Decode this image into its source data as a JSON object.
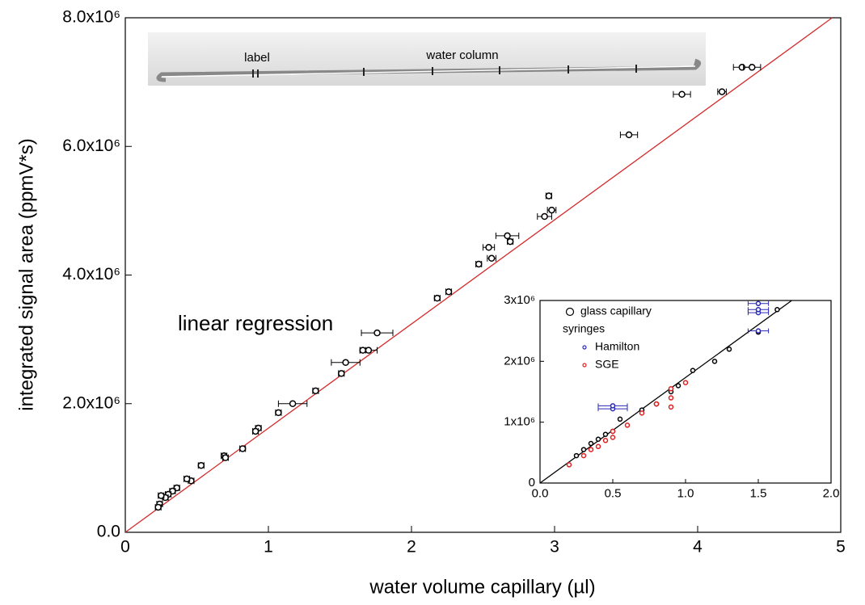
{
  "photo": {
    "labels": [
      "label",
      "water column"
    ]
  },
  "chart_data": [
    {
      "type": "scatter",
      "x_label": "water volume capillary (µl)",
      "y_label": "integrated signal area (ppmV*s)",
      "annotations": [
        {
          "text": "linear regression",
          "color": "#d42a2a"
        }
      ],
      "xlim": [
        0,
        5
      ],
      "ylim": [
        0,
        8000000
      ],
      "xticks": [
        0,
        1,
        2,
        3,
        4,
        5
      ],
      "yticks": [
        {
          "value": 0,
          "label": "0.0"
        },
        {
          "value": 2000000,
          "label": "2.0x10⁶"
        },
        {
          "value": 4000000,
          "label": "4.0x10⁶"
        },
        {
          "value": 6000000,
          "label": "6.0x10⁶"
        },
        {
          "value": 8000000,
          "label": "8.0x10⁶"
        }
      ],
      "series": [
        {
          "color": "#000000",
          "x": [
            4.31,
            4.38,
            3.89,
            4.17,
            3.52,
            2.96,
            2.98,
            2.93,
            2.67,
            2.69,
            2.54,
            2.56,
            2.47,
            2.26,
            2.18,
            1.76,
            1.7,
            1.66,
            1.54,
            1.51,
            1.33,
            1.17,
            1.07,
            0.93,
            0.91,
            0.82,
            0.69,
            0.7,
            0.53,
            0.46,
            0.43,
            0.36,
            0.33,
            0.3,
            0.28,
            0.25,
            0.24,
            0.23
          ],
          "values": [
            7230000,
            7230000,
            6810000,
            6850000,
            6180000,
            5230000,
            5010000,
            4910000,
            4610000,
            4520000,
            4430000,
            4260000,
            4170000,
            3740000,
            3640000,
            3100000,
            2830000,
            2830000,
            2640000,
            2470000,
            2200000,
            2000000,
            1860000,
            1620000,
            1570000,
            1300000,
            1190000,
            1160000,
            1040000,
            800000,
            830000,
            690000,
            640000,
            590000,
            540000,
            570000,
            440000,
            390000
          ],
          "x_errors": [
            0.06,
            0.06,
            0.06,
            0.03,
            0.06,
            0.02,
            0.03,
            0.05,
            0.08,
            0.02,
            0.04,
            0.03,
            0.02,
            0.02,
            0.02,
            0.11,
            0.06,
            0.02,
            0.1,
            0.02,
            0.02,
            0.1,
            0.02,
            0.02,
            0.02,
            0.02,
            0.02,
            0.02,
            0.02,
            0.02,
            0.02,
            0.02,
            0.02,
            0.02,
            0.02,
            0.02,
            0.02,
            0.02
          ]
        }
      ],
      "regression": {
        "x": [
          0,
          4.94
        ],
        "values": [
          0,
          8000000
        ],
        "color": "#d42a2a"
      }
    },
    {
      "type": "scatter",
      "xlim": [
        0,
        2
      ],
      "ylim": [
        0,
        3000000
      ],
      "xticks": [
        {
          "value": 0,
          "label": "0.0"
        },
        {
          "value": 0.5,
          "label": "0.5"
        },
        {
          "value": 1,
          "label": "1.0"
        },
        {
          "value": 1.5,
          "label": "1.5"
        },
        {
          "value": 2,
          "label": "2.0"
        }
      ],
      "yticks": [
        0,
        {
          "value": 1000000,
          "label": "1x10⁶"
        },
        {
          "value": 2000000,
          "label": "2x10⁶"
        },
        {
          "value": 3000000,
          "label": "3x10⁶"
        }
      ],
      "legend_group_title": "syringes",
      "series": [
        {
          "name": "glass capillary",
          "color": "#000000",
          "x": [
            0.25,
            0.3,
            0.35,
            0.4,
            0.45,
            0.5,
            0.55,
            0.7,
            0.8,
            0.9,
            0.95,
            1.05,
            1.2,
            1.3,
            1.5,
            1.63
          ],
          "values": [
            450000,
            550000,
            650000,
            720000,
            800000,
            850000,
            1050000,
            1200000,
            1300000,
            1500000,
            1600000,
            1850000,
            2000000,
            2200000,
            2480000,
            2850000
          ]
        },
        {
          "name": "Hamilton",
          "color": "#2a2ab8",
          "x": [
            0.5,
            0.5,
            1.5,
            1.5,
            1.5,
            1.5
          ],
          "values": [
            1220000,
            1270000,
            2800000,
            2850000,
            2950000,
            2500000
          ],
          "x_errors": [
            0.1,
            0.1,
            0.07,
            0.07,
            0.07,
            0.07
          ]
        },
        {
          "name": "SGE",
          "color": "#e02020",
          "x": [
            0.2,
            0.3,
            0.35,
            0.4,
            0.45,
            0.5,
            0.5,
            0.6,
            0.7,
            0.8,
            0.9,
            0.9,
            0.9,
            1.0
          ],
          "values": [
            300000,
            450000,
            550000,
            600000,
            700000,
            750000,
            850000,
            950000,
            1150000,
            1300000,
            1250000,
            1400000,
            1550000,
            1650000
          ]
        }
      ],
      "regression": {
        "x": [
          0,
          1.73
        ],
        "values": [
          0,
          3000000
        ],
        "color": "#000000"
      }
    }
  ]
}
